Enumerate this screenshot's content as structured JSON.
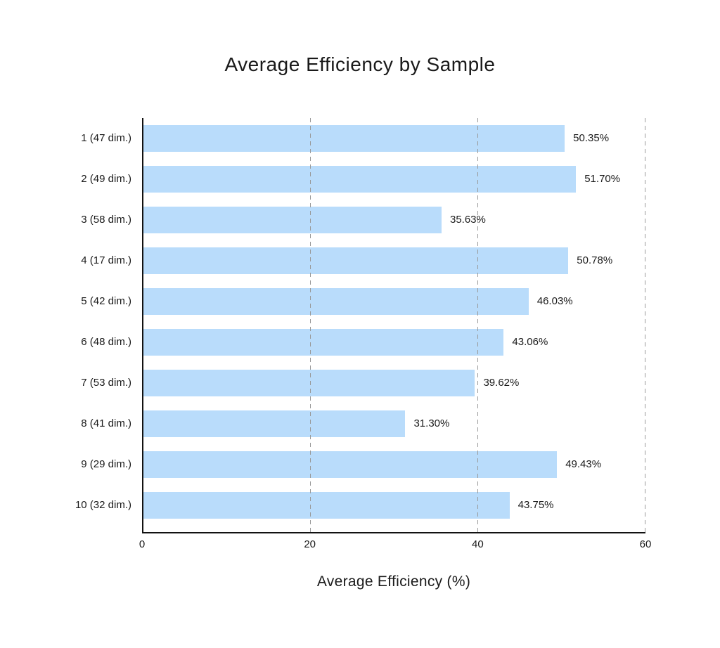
{
  "chart_data": {
    "type": "bar",
    "orientation": "horizontal",
    "title": "Average Efficiency by Sample",
    "xlabel": "Average Efficiency (%)",
    "categories": [
      "1 (47 dim.)",
      "2 (49 dim.)",
      "3 (58 dim.)",
      "4 (17 dim.)",
      "5 (42 dim.)",
      "6 (48 dim.)",
      "7 (53 dim.)",
      "8 (41 dim.)",
      "9 (29 dim.)",
      "10 (32 dim.)"
    ],
    "values": [
      50.35,
      51.7,
      35.63,
      50.78,
      46.03,
      43.06,
      39.62,
      31.3,
      49.43,
      43.75
    ],
    "value_labels": [
      "50.35%",
      "51.70%",
      "35.63%",
      "50.78%",
      "46.03%",
      "43.06%",
      "39.62%",
      "31.30%",
      "49.43%",
      "43.75%"
    ],
    "xlim": [
      0,
      60
    ],
    "xticks": [
      0,
      20,
      40,
      60
    ],
    "xtick_labels": [
      "0",
      "20",
      "40",
      "60"
    ],
    "grid": {
      "axis": "x",
      "style": "dashed",
      "drawn_over_bars": true
    },
    "legend": "none",
    "colors": {
      "bar": "#b9dcfb",
      "gridline": "#999999",
      "text": "#1a1a1a",
      "spine": "#111111",
      "background": "#ffffff"
    }
  }
}
